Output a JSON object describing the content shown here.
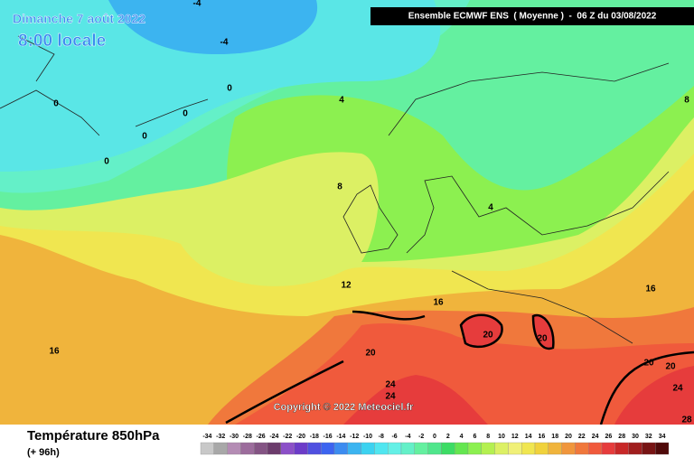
{
  "header": {
    "date": "Dimanche 7 août 2022",
    "time": "8:00 locale",
    "model": "Ensemble ECMWF ENS  ( Moyenne )  -  06 Z du 03/08/2022"
  },
  "contour_labels": [
    -4,
    -4,
    0,
    0,
    0,
    0,
    0,
    4,
    4,
    8,
    8,
    12,
    16,
    16,
    16,
    20,
    20,
    20,
    20,
    20,
    24,
    24,
    24,
    28
  ],
  "copyright": "Copyright © 2022 Meteociel.fr",
  "footer": {
    "title": "Température 850hPa",
    "subtitle": "(+ 96h)"
  },
  "legend": {
    "values": [
      -34,
      -32,
      -30,
      -28,
      -26,
      -24,
      -22,
      -20,
      -18,
      -16,
      -14,
      -12,
      -10,
      -8,
      -6,
      -4,
      -2,
      0,
      2,
      4,
      6,
      8,
      10,
      12,
      14,
      16,
      18,
      20,
      22,
      24,
      26,
      28,
      30,
      32,
      34
    ],
    "colors": [
      "#c8c8c8",
      "#a8a8a8",
      "#b48cb4",
      "#9c6c9c",
      "#845484",
      "#6c3c6c",
      "#8c50c8",
      "#6c3cc8",
      "#5050e0",
      "#3c64f0",
      "#3c8cf0",
      "#3cb4f0",
      "#3cd2f0",
      "#50e6f0",
      "#64f0e6",
      "#64f0c8",
      "#64f0a0",
      "#50e68c",
      "#3cdc64",
      "#64e650",
      "#8cf050",
      "#b4f050",
      "#dcf064",
      "#f0f078",
      "#f0e650",
      "#f0d23c",
      "#f0b43c",
      "#f0963c",
      "#f0783c",
      "#f05a3c",
      "#e63c3c",
      "#c82828",
      "#a01e1e",
      "#781414",
      "#500a0a"
    ]
  }
}
